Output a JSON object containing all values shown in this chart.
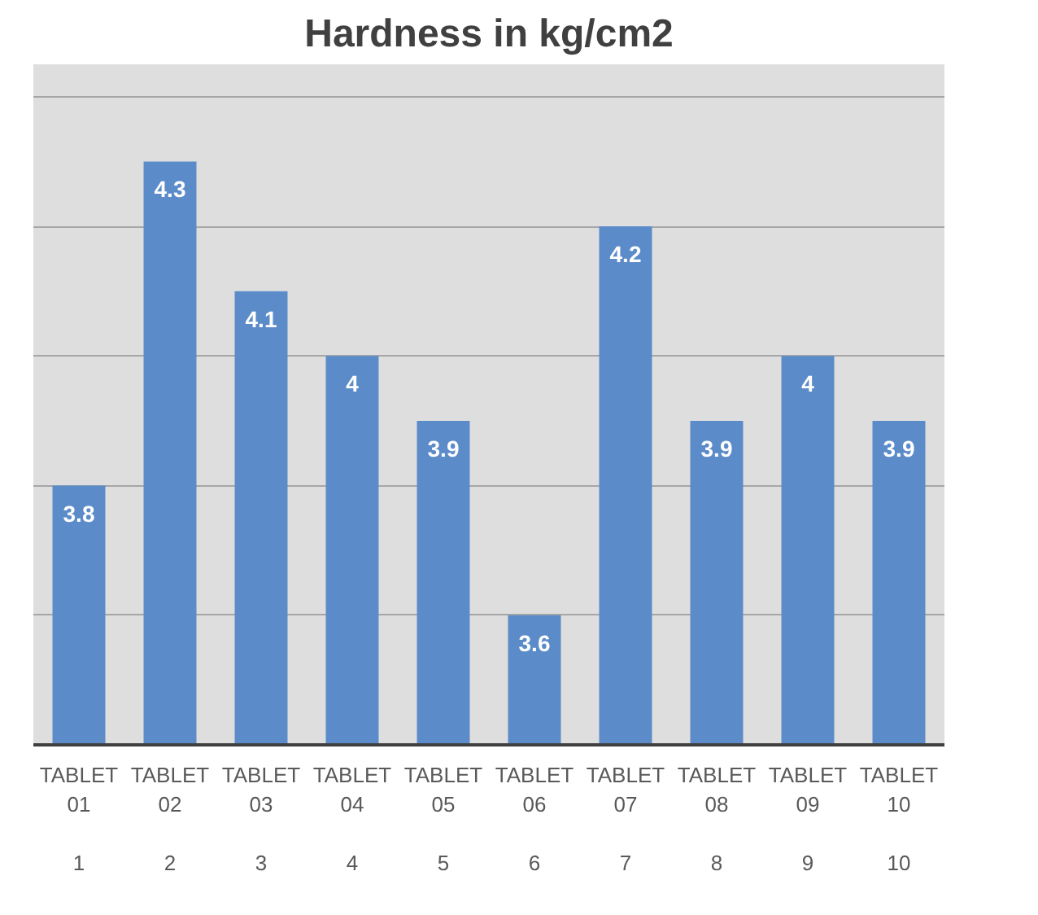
{
  "chart_data": {
    "type": "bar",
    "title": "Hardness in kg/cm2",
    "categories": [
      "TABLET 01\n1",
      "TABLET 02\n2",
      "TABLET 03\n3",
      "TABLET 04\n4",
      "TABLET 05\n5",
      "TABLET 06\n6",
      "TABLET 07\n7",
      "TABLET 08\n8",
      "TABLET 09\n9",
      "TABLET 10\n10"
    ],
    "values": [
      3.8,
      4.3,
      4.1,
      4.0,
      3.9,
      3.6,
      4.2,
      3.9,
      4.0,
      3.9
    ],
    "value_labels": [
      "3.8",
      "4.3",
      "4.1",
      "4",
      "3.9",
      "3.6",
      "4.2",
      "3.9",
      "4",
      "3.9"
    ],
    "color": "#5b8bc9",
    "ylim": [
      3.4,
      4.45
    ],
    "yticks": [
      {
        "value": 3.4,
        "label": null
      },
      {
        "value": 3.6,
        "label": null
      },
      {
        "value": 3.8,
        "label": null
      },
      {
        "value": 4.0,
        "label": null
      },
      {
        "value": 4.2,
        "label": null
      },
      {
        "value": 4.4,
        "label": null
      }
    ],
    "tick_labels": "x",
    "grid": "y"
  }
}
